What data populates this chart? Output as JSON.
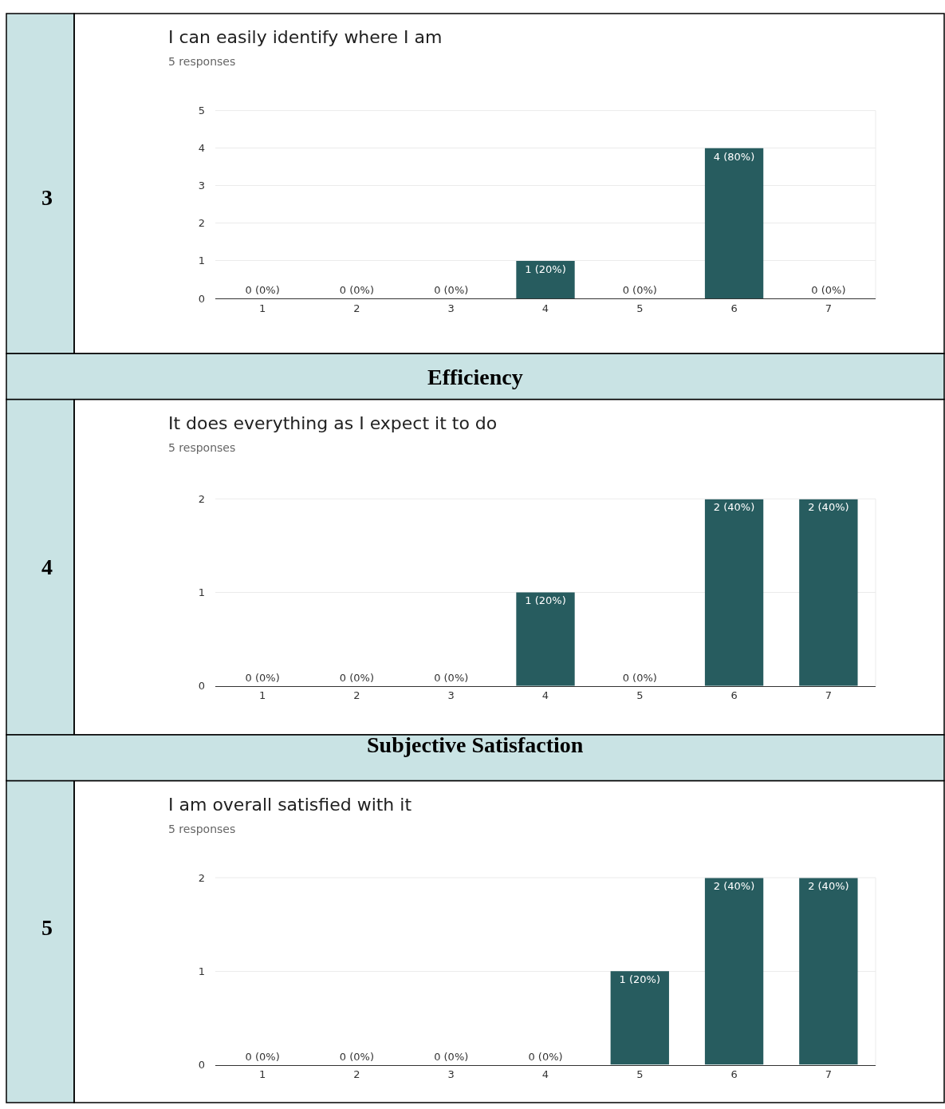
{
  "chart_data": [
    {
      "type": "bar",
      "title": "I can easily identify where I am",
      "subtitle": "5 responses",
      "categories": [
        "1",
        "2",
        "3",
        "4",
        "5",
        "6",
        "7"
      ],
      "values": [
        0,
        0,
        0,
        1,
        0,
        4,
        0
      ],
      "value_labels": [
        "0 (0%)",
        "0 (0%)",
        "0 (0%)",
        "1 (20%)",
        "0 (0%)",
        "4 (80%)",
        "0 (0%)"
      ],
      "color": "#275c5f",
      "ylim": [
        0,
        5
      ],
      "yticks": [
        0,
        1,
        2,
        3,
        4,
        5
      ],
      "grid": "y",
      "annotations": [
        "3"
      ]
    },
    {
      "type": "bar",
      "title": "It does everything as I expect it to do",
      "subtitle": "5 responses",
      "categories": [
        "1",
        "2",
        "3",
        "4",
        "5",
        "6",
        "7"
      ],
      "values": [
        0,
        0,
        0,
        1,
        0,
        2,
        2
      ],
      "value_labels": [
        "0 (0%)",
        "0 (0%)",
        "0 (0%)",
        "1 (20%)",
        "0 (0%)",
        "2 (40%)",
        "2 (40%)"
      ],
      "color": "#275c5f",
      "ylim": [
        0,
        2
      ],
      "yticks": [
        0,
        1,
        2
      ],
      "grid": "y",
      "annotations": [
        "Efficiency",
        "4"
      ]
    },
    {
      "type": "bar",
      "title": "I am overall satisfied with it",
      "subtitle": "5 responses",
      "categories": [
        "1",
        "2",
        "3",
        "4",
        "5",
        "6",
        "7"
      ],
      "values": [
        0,
        0,
        0,
        0,
        1,
        2,
        2
      ],
      "value_labels": [
        "0 (0%)",
        "0 (0%)",
        "0 (0%)",
        "0 (0%)",
        "1 (20%)",
        "2 (40%)",
        "2 (40%)"
      ],
      "color": "#275c5f",
      "ylim": [
        0,
        2
      ],
      "yticks": [
        0,
        1,
        2
      ],
      "grid": "y",
      "annotations": [
        "Subjective Satisfaction",
        "5"
      ]
    }
  ]
}
